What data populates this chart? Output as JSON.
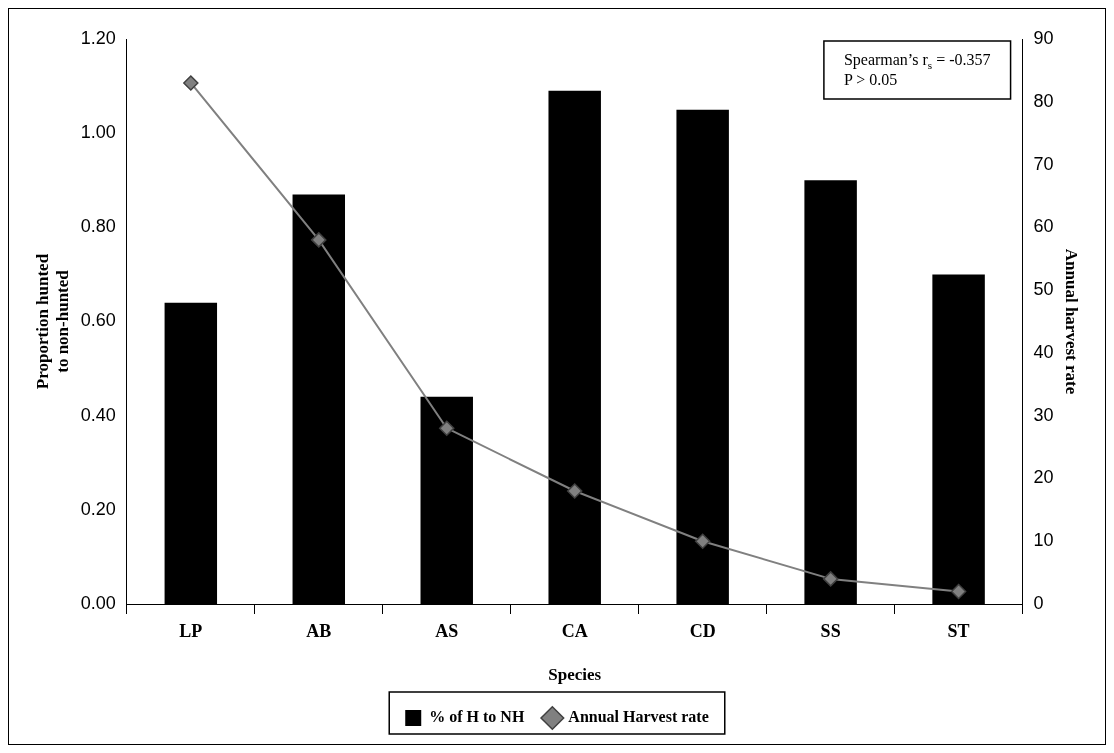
{
  "chart_data": {
    "type": "bar",
    "xlabel": "Species",
    "ylabel": "Proportion hunted\nto non-hunted",
    "y2label": "Annual harvest rate",
    "categories": [
      "LP",
      "AB",
      "AS",
      "CA",
      "CD",
      "SS",
      "ST"
    ],
    "series": [
      {
        "name": "% of H to NH",
        "color": "#000000",
        "values": [
          0.64,
          0.87,
          0.44,
          1.09,
          1.05,
          0.9,
          0.7
        ]
      },
      {
        "name": "Annual Harvest rate",
        "type": "line",
        "axis": "y2",
        "color": "#808080",
        "values": [
          83,
          58,
          28,
          18,
          10,
          4,
          2
        ]
      }
    ],
    "ylim": [
      0,
      1.2
    ],
    "yticks": [
      {
        "value": 0,
        "label": "0.00"
      },
      {
        "value": 0.2,
        "label": "0.20"
      },
      {
        "value": 0.4,
        "label": "0.40"
      },
      {
        "value": 0.6,
        "label": "0.60"
      },
      {
        "value": 0.8,
        "label": "0.80"
      },
      {
        "value": 1,
        "label": "1.00"
      },
      {
        "value": 1.2,
        "label": "1.20"
      }
    ],
    "y2lim": [
      0,
      90
    ],
    "y2ticks": [
      0,
      10,
      20,
      30,
      40,
      50,
      60,
      70,
      80,
      90
    ],
    "annotations": [
      "Spearman’s r$_{s}$ = -0.357\nP > 0.05"
    ],
    "legend": "bottom",
    "marker": "diamond",
    "grid": false
  }
}
